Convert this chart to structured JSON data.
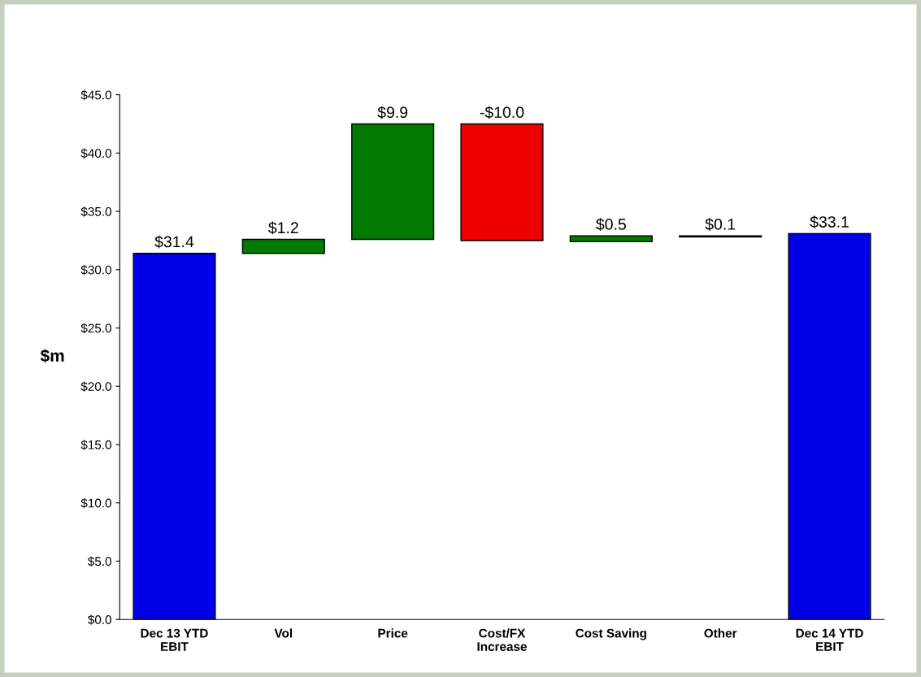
{
  "chart_data": {
    "type": "bar",
    "categories": [
      "Dec 13 YTD\nEBIT",
      "Vol",
      "Price",
      "Cost/FX\nIncrease",
      "Cost Saving",
      "Other",
      "Dec 14 YTD\nEBIT"
    ],
    "values": [
      31.4,
      1.2,
      9.9,
      -10.0,
      0.5,
      0.1,
      33.1
    ],
    "base": [
      0,
      31.4,
      32.6,
      42.5,
      32.4,
      32.8,
      0
    ],
    "colors": [
      "#0000e8",
      "#007a00",
      "#007a00",
      "#ee0000",
      "#007a00",
      "#007a00",
      "#0000e8"
    ],
    "value_labels": [
      "$31.4",
      "$1.2",
      "$9.9",
      "-$10.0",
      "$0.5",
      "$0.1",
      "$33.1"
    ],
    "ylabel": "$m",
    "ylim": [
      0,
      45
    ],
    "yticks": [
      {
        "value": 0,
        "label": "$0.0"
      },
      {
        "value": 5,
        "label": "$5.0"
      },
      {
        "value": 10,
        "label": "$10.0"
      },
      {
        "value": 15,
        "label": "$15.0"
      },
      {
        "value": 20,
        "label": "$20.0"
      },
      {
        "value": 25,
        "label": "$25.0"
      },
      {
        "value": 30,
        "label": "$30.0"
      },
      {
        "value": 35,
        "label": "$35.0"
      },
      {
        "value": 40,
        "label": "$40.0"
      },
      {
        "value": 45,
        "label": "$45.0"
      }
    ],
    "grid": false
  }
}
